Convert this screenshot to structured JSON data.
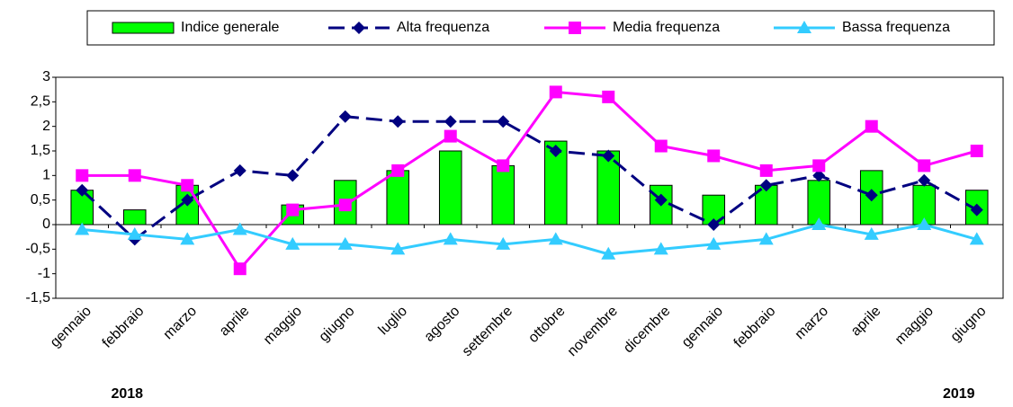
{
  "chart_data": {
    "type": "bar-line",
    "categories": [
      "gennaio",
      "febbraio",
      "marzo",
      "aprile",
      "maggio",
      "giugno",
      "luglio",
      "agosto",
      "settembre",
      "ottobre",
      "novembre",
      "dicembre",
      "gennaio",
      "febbraio",
      "marzo",
      "aprile",
      "maggio",
      "giugno"
    ],
    "series": [
      {
        "name": "Indice generale",
        "type": "bar",
        "color": "#00ff00",
        "values": [
          0.7,
          0.3,
          0.8,
          0.0,
          0.4,
          0.9,
          1.1,
          1.5,
          1.2,
          1.7,
          1.5,
          0.8,
          0.6,
          0.8,
          0.9,
          1.1,
          0.8,
          0.7
        ]
      },
      {
        "name": "Alta frequenza",
        "type": "line",
        "marker": "diamond",
        "dashed": true,
        "color": "#000080",
        "values": [
          0.7,
          -0.3,
          0.5,
          1.1,
          1.0,
          2.2,
          2.1,
          2.1,
          2.1,
          1.5,
          1.4,
          0.5,
          0.0,
          0.8,
          1.0,
          0.6,
          0.9,
          0.3
        ]
      },
      {
        "name": "Media frequenza",
        "type": "line",
        "marker": "square",
        "dashed": false,
        "color": "#ff00ff",
        "values": [
          1.0,
          1.0,
          0.8,
          -0.9,
          0.3,
          0.4,
          1.1,
          1.8,
          1.2,
          2.7,
          2.6,
          1.6,
          1.4,
          1.1,
          1.2,
          2.0,
          1.2,
          1.5
        ]
      },
      {
        "name": "Bassa frequenza",
        "type": "line",
        "marker": "triangle",
        "dashed": false,
        "color": "#33ccff",
        "values": [
          -0.1,
          -0.2,
          -0.3,
          -0.1,
          -0.4,
          -0.4,
          -0.5,
          -0.3,
          -0.4,
          -0.3,
          -0.6,
          -0.5,
          -0.4,
          -0.3,
          0.0,
          -0.2,
          0.0,
          -0.3
        ]
      }
    ],
    "ylim": [
      -1.5,
      3
    ],
    "yticks": [
      3,
      {
        "value": 2.5,
        "label": "2,5"
      },
      2,
      {
        "value": 1.5,
        "label": "1,5"
      },
      1,
      {
        "value": 0.5,
        "label": "0,5"
      },
      0,
      {
        "value": -0.5,
        "label": "-0,5"
      },
      -1,
      {
        "value": -1.5,
        "label": "-1,5"
      }
    ],
    "grid": false,
    "legend": "top",
    "annotations": [
      {
        "text": "2018",
        "category": 0,
        "color": "#ff0000"
      },
      {
        "text": "2019",
        "category": 17,
        "color": "#ff0000"
      }
    ]
  }
}
